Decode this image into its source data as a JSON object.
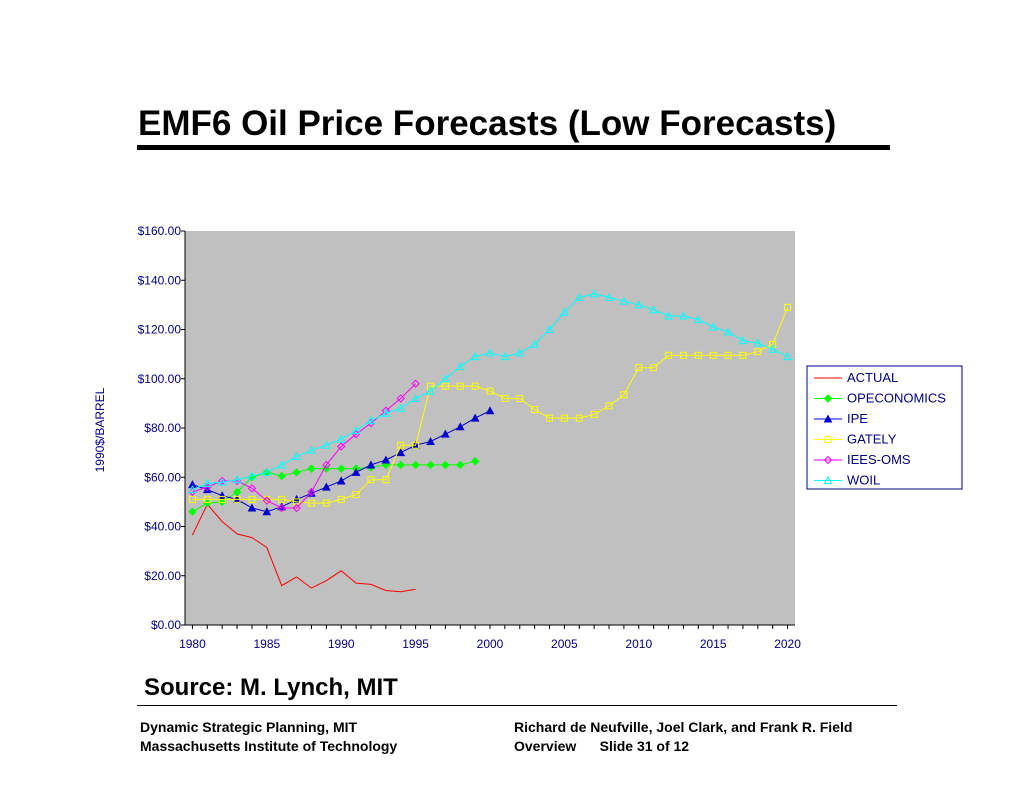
{
  "slide": {
    "title": "EMF6 Oil Price Forecasts (Low Forecasts)",
    "source": "Source: M. Lynch, MIT"
  },
  "footer": {
    "left_line1": "Dynamic Strategic Planning, MIT",
    "left_line2": "Massachusetts Institute of Technology",
    "right_line1": "Richard de Neufville, Joel Clark, and Frank  R. Field",
    "right_line2_a": "Overview",
    "right_line2_b": "Slide 31 of 12"
  },
  "chart_data": {
    "type": "line",
    "ylabel": "1990$/BARREL",
    "xlabel": "",
    "xlim": [
      1979.5,
      2020.5
    ],
    "ylim": [
      0,
      160
    ],
    "x_ticks": [
      1980,
      1985,
      1990,
      1995,
      2000,
      2005,
      2010,
      2015,
      2020
    ],
    "y_ticks": [
      {
        "value": 0,
        "label": "$0.00"
      },
      {
        "value": 20,
        "label": "$20.00"
      },
      {
        "value": 40,
        "label": "$40.00"
      },
      {
        "value": 60,
        "label": "$60.00"
      },
      {
        "value": 80,
        "label": "$80.00"
      },
      {
        "value": 100,
        "label": "$100.00"
      },
      {
        "value": 120,
        "label": "$120.00"
      },
      {
        "value": 140,
        "label": "$140.00"
      },
      {
        "value": 160,
        "label": "$160.00"
      }
    ],
    "plot_background": "#c0c0c0",
    "grid": false,
    "legend_position": "right",
    "series": [
      {
        "name": "ACTUAL",
        "color": "#ff0000",
        "marker": "none",
        "x": [
          1980,
          1981,
          1982,
          1983,
          1984,
          1985,
          1986,
          1987,
          1988,
          1989,
          1990,
          1991,
          1992,
          1993,
          1994,
          1995
        ],
        "y": [
          36.5,
          49,
          42,
          37,
          35.5,
          31.5,
          16,
          19.5,
          15,
          18,
          22,
          17,
          16.5,
          14,
          13.5,
          14.5
        ]
      },
      {
        "name": "OPECONOMICS",
        "color": "#00ff00",
        "marker": "diamond-filled",
        "x": [
          1980,
          1981,
          1982,
          1983,
          1984,
          1985,
          1986,
          1987,
          1988,
          1989,
          1990,
          1991,
          1992,
          1993,
          1994,
          1995,
          1996,
          1997,
          1998,
          1999
        ],
        "y": [
          46,
          49.5,
          50,
          54,
          60,
          62,
          60.5,
          62,
          63.5,
          63.5,
          63.5,
          63.5,
          64,
          65,
          65,
          65,
          65,
          65,
          65,
          66.5
        ]
      },
      {
        "name": "IPE",
        "color": "#0000cc",
        "marker": "triangle-filled",
        "x": [
          1980,
          1981,
          1982,
          1983,
          1984,
          1985,
          1986,
          1987,
          1988,
          1989,
          1990,
          1991,
          1992,
          1993,
          1994,
          1995,
          1996,
          1997,
          1998,
          1999,
          2000
        ],
        "y": [
          57,
          55,
          52.5,
          51,
          47.5,
          46,
          48,
          51,
          53.5,
          56,
          58.5,
          62,
          65,
          67,
          70,
          73,
          74.5,
          77.5,
          80.5,
          84,
          87
        ]
      },
      {
        "name": "GATELY",
        "color": "#ffff00",
        "marker": "square-open",
        "x": [
          1980,
          1981,
          1982,
          1983,
          1984,
          1985,
          1986,
          1987,
          1988,
          1989,
          1990,
          1991,
          1992,
          1993,
          1994,
          1995,
          1996,
          1997,
          1998,
          1999,
          2000,
          2001,
          2002,
          2003,
          2004,
          2005,
          2006,
          2007,
          2008,
          2009,
          2010,
          2011,
          2012,
          2013,
          2014,
          2015,
          2016,
          2017,
          2018,
          2019,
          2020
        ],
        "y": [
          51,
          51,
          51,
          51,
          51,
          51,
          51,
          50,
          49.5,
          49.5,
          51,
          53,
          59,
          59,
          73,
          73,
          97,
          97,
          97,
          97,
          95,
          92,
          92,
          87.5,
          84,
          84,
          84,
          85.5,
          89,
          93.5,
          104.5,
          104.5,
          109.5,
          109.5,
          109.5,
          109.5,
          109.5,
          109.5,
          111,
          114,
          129
        ]
      },
      {
        "name": "IEES-OMS",
        "color": "#ff00ff",
        "marker": "diamond-open",
        "x": [
          1980,
          1981,
          1982,
          1983,
          1984,
          1985,
          1986,
          1987,
          1988,
          1989,
          1990,
          1991,
          1992,
          1993,
          1994,
          1995
        ],
        "y": [
          54,
          56,
          58.5,
          58.5,
          55.5,
          50.5,
          47.5,
          47.5,
          54,
          65,
          72.5,
          77.5,
          82,
          87,
          92,
          98
        ]
      },
      {
        "name": "WOIL",
        "color": "#00ffff",
        "marker": "triangle-open",
        "x": [
          1980,
          1981,
          1982,
          1983,
          1984,
          1985,
          1986,
          1987,
          1988,
          1989,
          1990,
          1991,
          1992,
          1993,
          1994,
          1995,
          1996,
          1997,
          1998,
          1999,
          2000,
          2001,
          2002,
          2003,
          2004,
          2005,
          2006,
          2007,
          2008,
          2009,
          2010,
          2011,
          2012,
          2013,
          2014,
          2015,
          2016,
          2017,
          2018,
          2019,
          2020
        ],
        "y": [
          55,
          57.5,
          58,
          59,
          60.5,
          62,
          65,
          68.5,
          71,
          73,
          75.5,
          79,
          83,
          86,
          88,
          92,
          95,
          100,
          105,
          109,
          110.5,
          109,
          110.5,
          114,
          120,
          127,
          133,
          134.5,
          133,
          131.5,
          130,
          128,
          125.5,
          125.5,
          124,
          121,
          119,
          115.5,
          114.5,
          112,
          109
        ]
      }
    ]
  }
}
